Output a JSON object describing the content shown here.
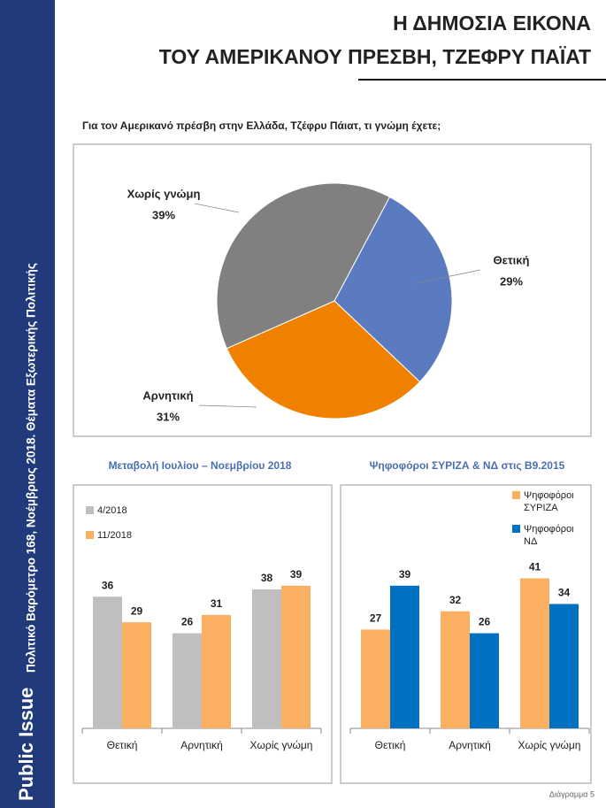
{
  "sidebar": {
    "brand": "Public Issue",
    "caption": "Πολιτικό Βαρόμετρο 168, Νοέμβριος 2018. Θέματα Εξωτερικής Πολιτικής"
  },
  "header": {
    "title_lines": [
      "Η ΔΗΜΟΣΙΑ ΕΙΚΟΝΑ",
      "ΤΟΥ ΑΜΕΡΙΚΑΝΟΥ ΠΡΕΣΒΗ, ΤΖΕΦΡΥ ΠΑΪΑΤ"
    ]
  },
  "chart_data": [
    {
      "type": "pie",
      "title": "Για τον Αμερικανό πρέσβη στην Ελλάδα, Τζέφρυ Πάιατ, τι γνώμη έχετε;",
      "categories": [
        "Θετική",
        "Αρνητική",
        "Χωρίς γνώμη"
      ],
      "values": [
        29,
        31,
        39
      ],
      "value_labels": [
        "29%",
        "31%",
        "39%"
      ],
      "colors": [
        "#5b7bc0",
        "#f08000",
        "#808080"
      ]
    },
    {
      "type": "bar",
      "title": "Μεταβολή Ιουλίου – Νοεμβρίου 2018",
      "categories": [
        "Θετική",
        "Αρνητική",
        "Χωρίς γνώμη"
      ],
      "ylim": [
        0,
        60
      ],
      "series": [
        {
          "name": "4/2018",
          "color": "#bfbfbf",
          "values": [
            36,
            26,
            38
          ]
        },
        {
          "name": "11/2018",
          "color": "#fbb061",
          "values": [
            29,
            31,
            39
          ]
        }
      ]
    },
    {
      "type": "bar",
      "title": "Ψηφοφόροι ΣΥΡΙΖΑ & ΝΔ στις Β9.2015",
      "categories": [
        "Θετική",
        "Αρνητική",
        "Χωρίς γνώμη"
      ],
      "ylim": [
        0,
        60
      ],
      "series": [
        {
          "name": "Ψηφοφόροι ΣΥΡΙΖΑ",
          "color": "#fbb061",
          "values": [
            27,
            32,
            41
          ]
        },
        {
          "name": "Ψηφοφόροι ΝΔ",
          "color": "#0070c0",
          "values": [
            39,
            26,
            34
          ]
        }
      ]
    }
  ],
  "footer": "Διάγραμμα 5"
}
